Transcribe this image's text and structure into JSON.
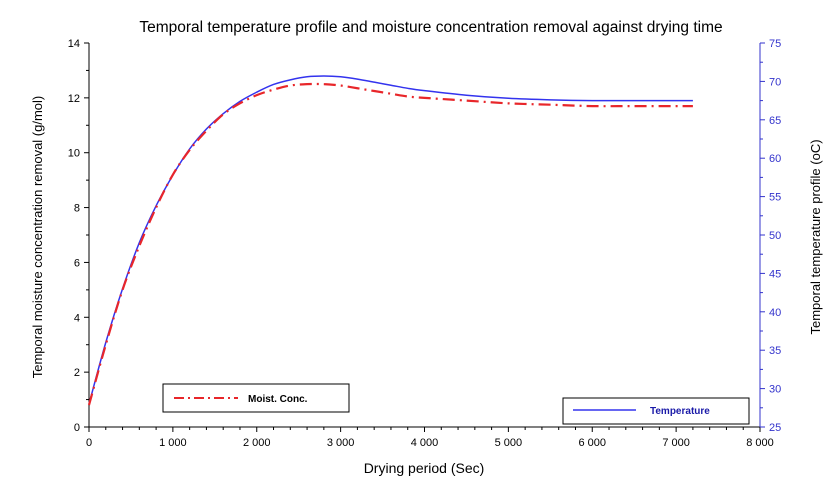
{
  "chart_data": {
    "type": "line",
    "title": "Temporal temperature profile and moisture concentration removal against drying time",
    "xlabel": "Drying period (Sec)",
    "ylabel_left": "Temporal moisture concentration removal (g/mol)",
    "ylabel_right": "Temporal temperature profile (oC)",
    "x_range": [
      0,
      8000
    ],
    "y_left_range": [
      0,
      14
    ],
    "y_right_range": [
      25,
      75
    ],
    "x_ticks": [
      "0",
      "1 000",
      "2 000",
      "3 000",
      "4 000",
      "5 000",
      "6 000",
      "7 000",
      "8 000"
    ],
    "y_left_ticks": [
      "0",
      "2",
      "4",
      "6",
      "8",
      "10",
      "12",
      "14"
    ],
    "y_right_ticks": [
      "25",
      "30",
      "35",
      "40",
      "45",
      "50",
      "55",
      "60",
      "65",
      "70",
      "75"
    ],
    "grid": false,
    "colors": {
      "moisture": "#e8262a",
      "temperature": "#3333ee",
      "right_axis": "#3333cc"
    },
    "series": [
      {
        "name": "Moist. Conc.",
        "axis": "left",
        "style": "dash-dot",
        "x": [
          0,
          200,
          400,
          600,
          800,
          1000,
          1200,
          1400,
          1600,
          1800,
          2000,
          2200,
          2400,
          2600,
          2800,
          3000,
          3200,
          3400,
          3600,
          3800,
          4000,
          4500,
          5000,
          5500,
          6000,
          6500,
          7000,
          7200
        ],
        "y": [
          0.8,
          3.0,
          5.0,
          6.6,
          8.0,
          9.2,
          10.1,
          10.8,
          11.4,
          11.8,
          12.1,
          12.3,
          12.45,
          12.5,
          12.5,
          12.45,
          12.35,
          12.25,
          12.15,
          12.05,
          12.0,
          11.9,
          11.8,
          11.75,
          11.7,
          11.7,
          11.7,
          11.7
        ]
      },
      {
        "name": "Temperature",
        "axis": "right",
        "style": "solid",
        "x": [
          0,
          200,
          400,
          600,
          800,
          1000,
          1200,
          1400,
          1600,
          1800,
          2000,
          2200,
          2400,
          2600,
          2800,
          3000,
          3200,
          3400,
          3600,
          3800,
          4000,
          4500,
          5000,
          5500,
          6000,
          6500,
          7000,
          7200
        ],
        "y": [
          28.0,
          36.0,
          43.0,
          49.0,
          53.8,
          57.8,
          61.2,
          63.8,
          65.8,
          67.4,
          68.6,
          69.6,
          70.2,
          70.6,
          70.7,
          70.6,
          70.3,
          69.9,
          69.5,
          69.1,
          68.8,
          68.2,
          67.8,
          67.6,
          67.5,
          67.5,
          67.5,
          67.5
        ]
      }
    ]
  }
}
